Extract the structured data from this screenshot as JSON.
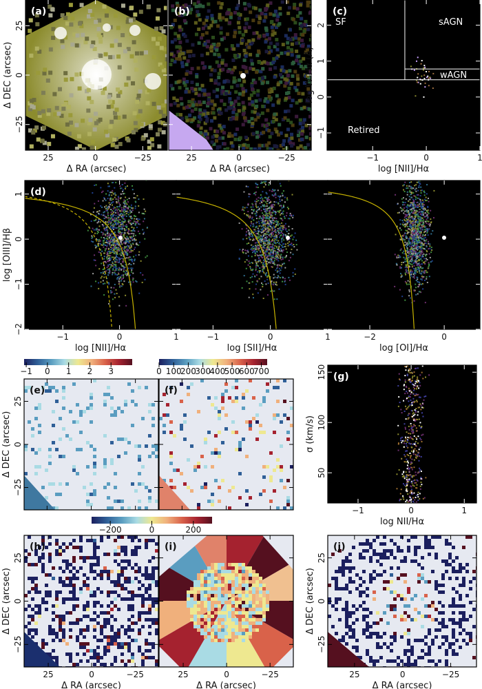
{
  "colors": {
    "colormap": [
      "#1b1f5e",
      "#2f5f97",
      "#5a9dc0",
      "#a9dbe4",
      "#eee890",
      "#f0b07c",
      "#d9624a",
      "#a5222f",
      "#55101f"
    ],
    "map_background": "#e6e9f1",
    "demarcation_line": "#c8b400",
    "whan_line": "#ffffff",
    "panel_background_dark": "#000000"
  },
  "chart_data": [
    {
      "id": "a",
      "title": "(a)",
      "type": "heatmap",
      "xlabel": "Δ RA (arcsec)",
      "ylabel": "Δ DEC (arcsec)",
      "xlim": [
        37,
        -38
      ],
      "ylim": [
        -38,
        38
      ],
      "xticks": [
        25,
        0,
        -25
      ],
      "yticks": [
        -25,
        0,
        25
      ]
    },
    {
      "id": "b",
      "title": "(b)",
      "type": "heatmap",
      "xlabel": "Δ RA (arcsec)",
      "ylabel": "",
      "xlim": [
        37,
        -38
      ],
      "ylim": [
        -38,
        38
      ],
      "xticks": [
        25,
        0,
        -25
      ],
      "yticks": [
        -25,
        0,
        25
      ]
    },
    {
      "id": "c",
      "title": "(c)",
      "type": "scatter",
      "xlabel": "log [NII]/Hα",
      "ylabel": "log W Hα (Å)",
      "xlim": [
        -1.85,
        1
      ],
      "ylim": [
        -1.48,
        2.7
      ],
      "xticks": [
        -1,
        0,
        1
      ],
      "yticks": [
        -1,
        0,
        1,
        2
      ],
      "annotations": [
        "SF",
        "sAGN",
        "wAGN",
        "Retired"
      ],
      "lines": [
        {
          "kind": "vertical",
          "x": -0.4,
          "y_from": 0.48
        },
        {
          "kind": "horizontal",
          "y": 0.48
        },
        {
          "kind": "horizontal",
          "y": 0.78,
          "x_from": -0.4
        }
      ]
    },
    {
      "id": "d1",
      "title": "(d)",
      "type": "scatter",
      "xlabel": "log [NII]/Hα",
      "ylabel": "log [OIII]/Hβ",
      "xlim": [
        -1.67,
        1
      ],
      "ylim": [
        -2,
        1.3
      ],
      "xticks": [
        -1,
        0,
        1
      ],
      "yticks": [
        -2,
        -1,
        0,
        1
      ],
      "curves": [
        {
          "kind": "Kewley",
          "style": "solid"
        },
        {
          "kind": "Kauffmann",
          "style": "dashed"
        }
      ]
    },
    {
      "id": "d2",
      "title": "",
      "type": "scatter",
      "xlabel": "log [SII]/Hα",
      "ylabel": "",
      "xlim": [
        -1.64,
        1
      ],
      "ylim": [
        -2,
        1.3
      ],
      "xticks": [
        -1,
        0,
        1
      ],
      "yticks": [
        -2,
        -1,
        0,
        1
      ],
      "curves": [
        {
          "kind": "Kewley",
          "style": "solid"
        }
      ]
    },
    {
      "id": "d3",
      "title": "",
      "type": "scatter",
      "xlabel": "log [OI]/Hα",
      "ylabel": "",
      "xlim": [
        -3.13,
        0.96
      ],
      "ylim": [
        -2,
        1.3
      ],
      "xticks": [
        -2,
        0
      ],
      "yticks": [
        -2,
        -1,
        0,
        1
      ],
      "curves": [
        {
          "kind": "Kewley",
          "style": "solid"
        }
      ]
    },
    {
      "id": "e",
      "title": "(e)",
      "type": "heatmap",
      "xlabel": "",
      "ylabel": "Δ DEC (arcsec)",
      "xlim": [
        38,
        -38
      ],
      "ylim": [
        -38,
        38
      ],
      "xticks": [
        25,
        0,
        -25
      ],
      "yticks": [
        -25,
        0,
        25
      ],
      "colorbar": {
        "ticks": [
          -1,
          0,
          1,
          2,
          3
        ],
        "range": [
          -1.1,
          4.0
        ]
      }
    },
    {
      "id": "f",
      "title": "(f)",
      "type": "heatmap",
      "xlabel": "",
      "ylabel": "",
      "xlim": [
        38,
        -38
      ],
      "ylim": [
        -38,
        38
      ],
      "xticks": [
        25,
        0,
        -25
      ],
      "yticks": [
        -25,
        0,
        25
      ],
      "colorbar": {
        "ticks": [
          0,
          100,
          200,
          300,
          400,
          500,
          600,
          700
        ],
        "range": [
          0,
          740
        ]
      }
    },
    {
      "id": "g",
      "title": "(g)",
      "type": "scatter",
      "xlabel": "log NII/Hα",
      "ylabel": "σ (km/s)",
      "xlim": [
        -1.57,
        1.23
      ],
      "ylim": [
        20,
        157
      ],
      "xticks": [
        -1,
        0,
        1
      ],
      "yticks": [
        50,
        100,
        150
      ]
    },
    {
      "id": "h",
      "title": "(h)",
      "type": "heatmap",
      "xlabel": "Δ RA (arcsec)",
      "ylabel": "Δ DEC (arcsec)",
      "xlim": [
        38.9,
        -38.4
      ],
      "ylim": [
        -38,
        38
      ],
      "xticks": [
        25,
        0,
        -25
      ],
      "yticks": [
        -25,
        0,
        25
      ],
      "colorbar": {
        "ticks": [
          -200,
          0,
          200
        ],
        "range": [
          -290,
          290
        ],
        "shared_with": [
          "h",
          "i"
        ]
      }
    },
    {
      "id": "i",
      "title": "(i)",
      "type": "heatmap",
      "xlabel": "Δ RA (arcsec)",
      "ylabel": "",
      "xlim": [
        38.9,
        -38.4
      ],
      "ylim": [
        -38,
        38
      ],
      "xticks": [
        25,
        0,
        -25
      ],
      "yticks": [
        -25,
        0,
        25
      ]
    },
    {
      "id": "j",
      "title": "(j)",
      "type": "heatmap",
      "xlabel": "Δ RA (arcsec)",
      "ylabel": "Δ DEC (arcsec)",
      "xlim": [
        38.9,
        -38.4
      ],
      "ylim": [
        -38,
        38
      ],
      "xticks": [
        25,
        0,
        -25
      ],
      "yticks": [
        -25,
        0,
        25
      ]
    }
  ]
}
